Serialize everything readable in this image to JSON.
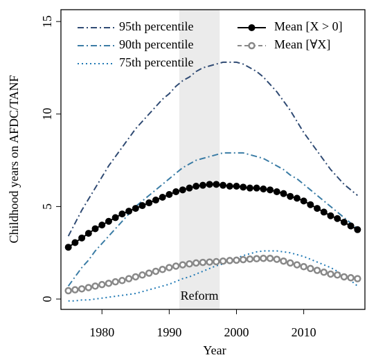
{
  "chart_data": {
    "type": "line",
    "x_label": "Year",
    "y_label": "Childhood years on AFDC/TANF",
    "x": [
      1975,
      1976,
      1977,
      1978,
      1979,
      1980,
      1981,
      1982,
      1983,
      1984,
      1985,
      1986,
      1987,
      1988,
      1989,
      1990,
      1991,
      1992,
      1993,
      1994,
      1995,
      1996,
      1997,
      1998,
      1999,
      2000,
      2001,
      2002,
      2003,
      2004,
      2005,
      2006,
      2007,
      2008,
      2009,
      2010,
      2011,
      2012,
      2013,
      2014,
      2015,
      2016,
      2017,
      2018
    ],
    "xlim": [
      1973.9,
      2019.1
    ],
    "xticks": [
      1980,
      1990,
      2000,
      2010
    ],
    "ylim": [
      -0.56,
      15.64
    ],
    "yticks": [
      0,
      5,
      10,
      15
    ],
    "shaded_region": {
      "range": [
        1991.5,
        1997.5
      ],
      "color": "#ebebeb",
      "label": "Reform"
    },
    "series": [
      {
        "name": "95th percentile",
        "color": "#2f4a73",
        "style": "dashdot",
        "values": [
          3.4,
          4.1,
          4.8,
          5.4,
          6.0,
          6.6,
          7.2,
          7.7,
          8.2,
          8.7,
          9.2,
          9.6,
          10.0,
          10.4,
          10.8,
          11.1,
          11.5,
          11.8,
          12.0,
          12.3,
          12.5,
          12.6,
          12.7,
          12.8,
          12.8,
          12.8,
          12.7,
          12.5,
          12.3,
          12.0,
          11.6,
          11.2,
          10.7,
          10.2,
          9.6,
          9.0,
          8.5,
          8.0,
          7.5,
          7.0,
          6.6,
          6.2,
          5.9,
          5.6
        ]
      },
      {
        "name": "90th percentile",
        "color": "#3a7ca5",
        "style": "dashdot",
        "values": [
          0.7,
          1.2,
          1.7,
          2.1,
          2.6,
          3.0,
          3.4,
          3.8,
          4.2,
          4.6,
          5.0,
          5.3,
          5.6,
          5.9,
          6.2,
          6.5,
          6.8,
          7.1,
          7.3,
          7.5,
          7.6,
          7.7,
          7.8,
          7.9,
          7.9,
          7.9,
          7.9,
          7.8,
          7.7,
          7.6,
          7.4,
          7.2,
          7.0,
          6.7,
          6.5,
          6.2,
          5.9,
          5.6,
          5.3,
          5.0,
          4.7,
          4.4,
          4.1,
          3.8
        ]
      },
      {
        "name": "75th percentile",
        "color": "#1f78b4",
        "style": "dotted",
        "values": [
          -0.1,
          -0.1,
          -0.05,
          -0.05,
          0,
          0.05,
          0.1,
          0.15,
          0.2,
          0.25,
          0.3,
          0.4,
          0.5,
          0.6,
          0.7,
          0.8,
          0.95,
          1.1,
          1.2,
          1.35,
          1.5,
          1.65,
          1.8,
          1.9,
          2.05,
          2.2,
          2.35,
          2.45,
          2.55,
          2.6,
          2.6,
          2.6,
          2.55,
          2.5,
          2.4,
          2.3,
          2.15,
          2.0,
          1.85,
          1.7,
          1.5,
          1.25,
          1.0,
          0.7
        ]
      },
      {
        "name": "Mean [X > 0]",
        "color": "#000000",
        "style": "solid-filled",
        "values": [
          2.8,
          3.05,
          3.3,
          3.55,
          3.8,
          4.0,
          4.2,
          4.4,
          4.6,
          4.75,
          4.9,
          5.05,
          5.2,
          5.35,
          5.5,
          5.65,
          5.8,
          5.9,
          6.0,
          6.1,
          6.15,
          6.2,
          6.2,
          6.15,
          6.1,
          6.1,
          6.05,
          6.0,
          6.0,
          5.95,
          5.9,
          5.8,
          5.7,
          5.55,
          5.45,
          5.3,
          5.1,
          4.9,
          4.7,
          4.5,
          4.35,
          4.15,
          3.95,
          3.75
        ]
      },
      {
        "name": "Mean [∀X]",
        "color": "#888888",
        "style": "dashed-open",
        "values": [
          0.45,
          0.5,
          0.55,
          0.62,
          0.7,
          0.78,
          0.85,
          0.93,
          1.0,
          1.1,
          1.2,
          1.3,
          1.4,
          1.5,
          1.6,
          1.7,
          1.78,
          1.85,
          1.9,
          1.95,
          1.98,
          2.0,
          2.02,
          2.05,
          2.08,
          2.1,
          2.13,
          2.16,
          2.18,
          2.2,
          2.2,
          2.15,
          2.05,
          1.95,
          1.85,
          1.75,
          1.65,
          1.55,
          1.45,
          1.35,
          1.3,
          1.2,
          1.15,
          1.1
        ]
      }
    ]
  }
}
